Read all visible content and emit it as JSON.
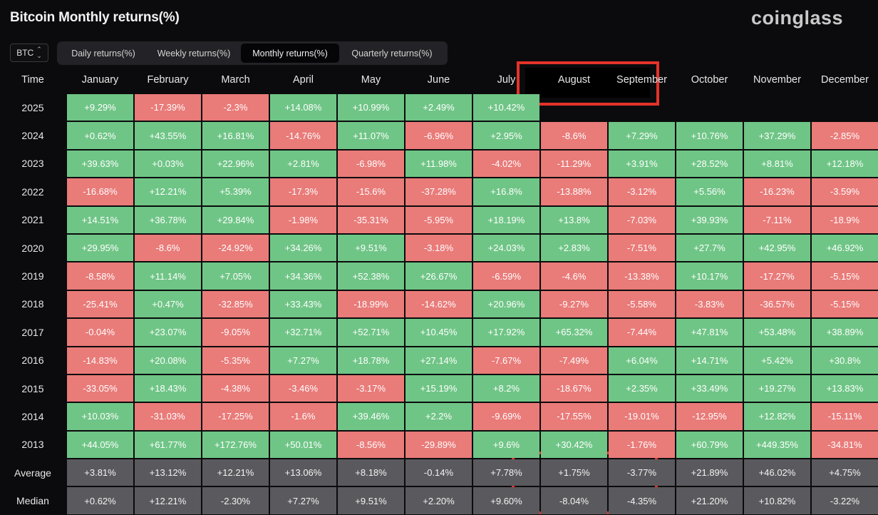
{
  "header": {
    "title": "Bitcoin Monthly returns(%)",
    "brand": "coinglass"
  },
  "asset_select": {
    "value": "BTC",
    "icon": "chevron-updown-icon"
  },
  "tabs": [
    {
      "label": "Daily returns(%)",
      "active": false
    },
    {
      "label": "Weekly returns(%)",
      "active": false
    },
    {
      "label": "Monthly returns(%)",
      "active": true
    },
    {
      "label": "Quarterly returns(%)",
      "active": false
    }
  ],
  "colors": {
    "positive": "#6fc586",
    "negative": "#e97b79",
    "stat": "#5a5a5e",
    "highlight": "#e4332a"
  },
  "table": {
    "columns": [
      "Time",
      "January",
      "February",
      "March",
      "April",
      "May",
      "June",
      "July",
      "August",
      "September",
      "October",
      "November",
      "December"
    ],
    "rows": [
      {
        "label": "2025",
        "values": [
          "+9.29%",
          "-17.39%",
          "-2.3%",
          "+14.08%",
          "+10.99%",
          "+2.49%",
          "+10.42%",
          "",
          "",
          "",
          "",
          ""
        ]
      },
      {
        "label": "2024",
        "values": [
          "+0.62%",
          "+43.55%",
          "+16.81%",
          "-14.76%",
          "+11.07%",
          "-6.96%",
          "+2.95%",
          "-8.6%",
          "+7.29%",
          "+10.76%",
          "+37.29%",
          "-2.85%"
        ]
      },
      {
        "label": "2023",
        "values": [
          "+39.63%",
          "+0.03%",
          "+22.96%",
          "+2.81%",
          "-6.98%",
          "+11.98%",
          "-4.02%",
          "-11.29%",
          "+3.91%",
          "+28.52%",
          "+8.81%",
          "+12.18%"
        ]
      },
      {
        "label": "2022",
        "values": [
          "-16.68%",
          "+12.21%",
          "+5.39%",
          "-17.3%",
          "-15.6%",
          "-37.28%",
          "+16.8%",
          "-13.88%",
          "-3.12%",
          "+5.56%",
          "-16.23%",
          "-3.59%"
        ]
      },
      {
        "label": "2021",
        "values": [
          "+14.51%",
          "+36.78%",
          "+29.84%",
          "-1.98%",
          "-35.31%",
          "-5.95%",
          "+18.19%",
          "+13.8%",
          "-7.03%",
          "+39.93%",
          "-7.11%",
          "-18.9%"
        ]
      },
      {
        "label": "2020",
        "values": [
          "+29.95%",
          "-8.6%",
          "-24.92%",
          "+34.26%",
          "+9.51%",
          "-3.18%",
          "+24.03%",
          "+2.83%",
          "-7.51%",
          "+27.7%",
          "+42.95%",
          "+46.92%"
        ]
      },
      {
        "label": "2019",
        "values": [
          "-8.58%",
          "+11.14%",
          "+7.05%",
          "+34.36%",
          "+52.38%",
          "+26.67%",
          "-6.59%",
          "-4.6%",
          "-13.38%",
          "+10.17%",
          "-17.27%",
          "-5.15%"
        ]
      },
      {
        "label": "2018",
        "values": [
          "-25.41%",
          "+0.47%",
          "-32.85%",
          "+33.43%",
          "-18.99%",
          "-14.62%",
          "+20.96%",
          "-9.27%",
          "-5.58%",
          "-3.83%",
          "-36.57%",
          "-5.15%"
        ]
      },
      {
        "label": "2017",
        "values": [
          "-0.04%",
          "+23.07%",
          "-9.05%",
          "+32.71%",
          "+52.71%",
          "+10.45%",
          "+17.92%",
          "+65.32%",
          "-7.44%",
          "+47.81%",
          "+53.48%",
          "+38.89%"
        ]
      },
      {
        "label": "2016",
        "values": [
          "-14.83%",
          "+20.08%",
          "-5.35%",
          "+7.27%",
          "+18.78%",
          "+27.14%",
          "-7.67%",
          "-7.49%",
          "+6.04%",
          "+14.71%",
          "+5.42%",
          "+30.8%"
        ]
      },
      {
        "label": "2015",
        "values": [
          "-33.05%",
          "+18.43%",
          "-4.38%",
          "-3.46%",
          "-3.17%",
          "+15.19%",
          "+8.2%",
          "-18.67%",
          "+2.35%",
          "+33.49%",
          "+19.27%",
          "+13.83%"
        ]
      },
      {
        "label": "2014",
        "values": [
          "+10.03%",
          "-31.03%",
          "-17.25%",
          "-1.6%",
          "+39.46%",
          "+2.2%",
          "-9.69%",
          "-17.55%",
          "-19.01%",
          "-12.95%",
          "+12.82%",
          "-15.11%"
        ]
      },
      {
        "label": "2013",
        "values": [
          "+44.05%",
          "+61.77%",
          "+172.76%",
          "+50.01%",
          "-8.56%",
          "-29.89%",
          "+9.6%",
          "+30.42%",
          "-1.76%",
          "+60.79%",
          "+449.35%",
          "-34.81%"
        ]
      }
    ],
    "summary": [
      {
        "label": "Average",
        "values": [
          "+3.81%",
          "+13.12%",
          "+12.21%",
          "+13.06%",
          "+8.18%",
          "-0.14%",
          "+7.78%",
          "+1.75%",
          "-3.77%",
          "+21.89%",
          "+46.02%",
          "+4.75%"
        ]
      },
      {
        "label": "Median",
        "values": [
          "+0.62%",
          "+12.21%",
          "-2.30%",
          "+7.27%",
          "+9.51%",
          "+2.20%",
          "+9.60%",
          "-8.04%",
          "-4.35%",
          "+21.20%",
          "+10.82%",
          "-3.22%"
        ]
      }
    ]
  }
}
